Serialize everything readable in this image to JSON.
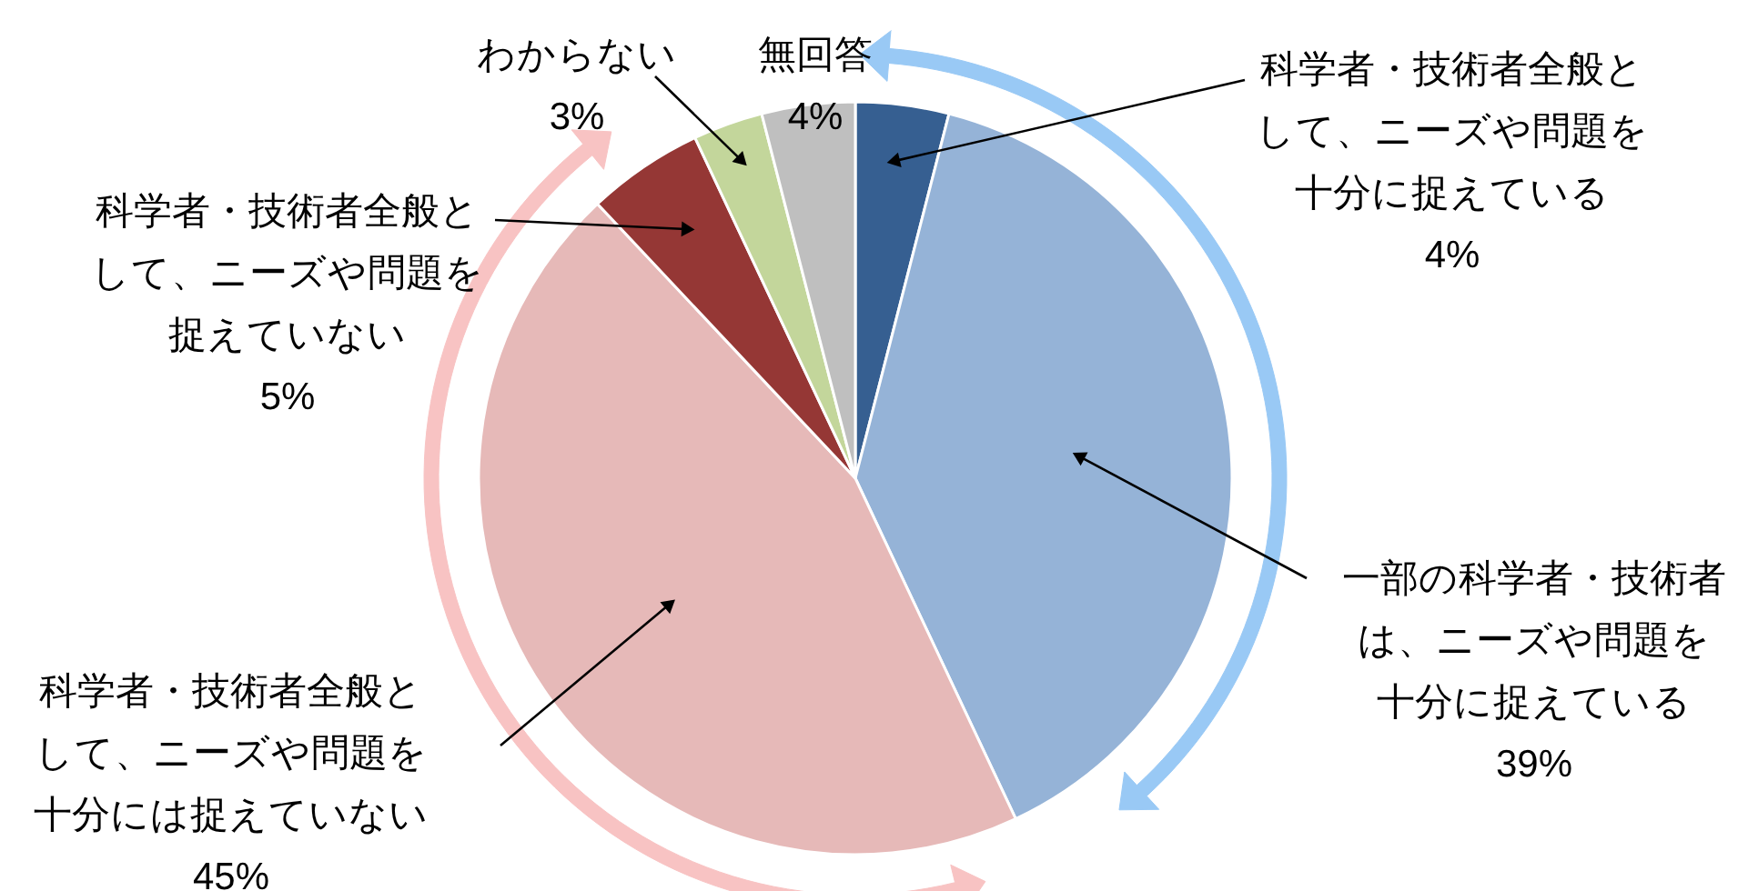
{
  "chart_data": {
    "type": "pie",
    "categories": [
      "科学者・技術者全般として、ニーズや問題を十分に捉えている",
      "一部の科学者・技術者は、ニーズや問題を十分に捉えている",
      "科学者・技術者全般として、ニーズや問題を十分には捉えていない",
      "科学者・技術者全般として、ニーズや問題を捉えていない",
      "わからない",
      "無回答"
    ],
    "values": [
      4,
      39,
      45,
      5,
      3,
      4
    ],
    "colors": [
      "#365f91",
      "#95b3d7",
      "#e6b9b8",
      "#953735",
      "#c3d69b",
      "#bfbfbf"
    ],
    "value_labels": [
      "4%",
      "39%",
      "45%",
      "5%",
      "3%",
      "4%"
    ]
  }
}
